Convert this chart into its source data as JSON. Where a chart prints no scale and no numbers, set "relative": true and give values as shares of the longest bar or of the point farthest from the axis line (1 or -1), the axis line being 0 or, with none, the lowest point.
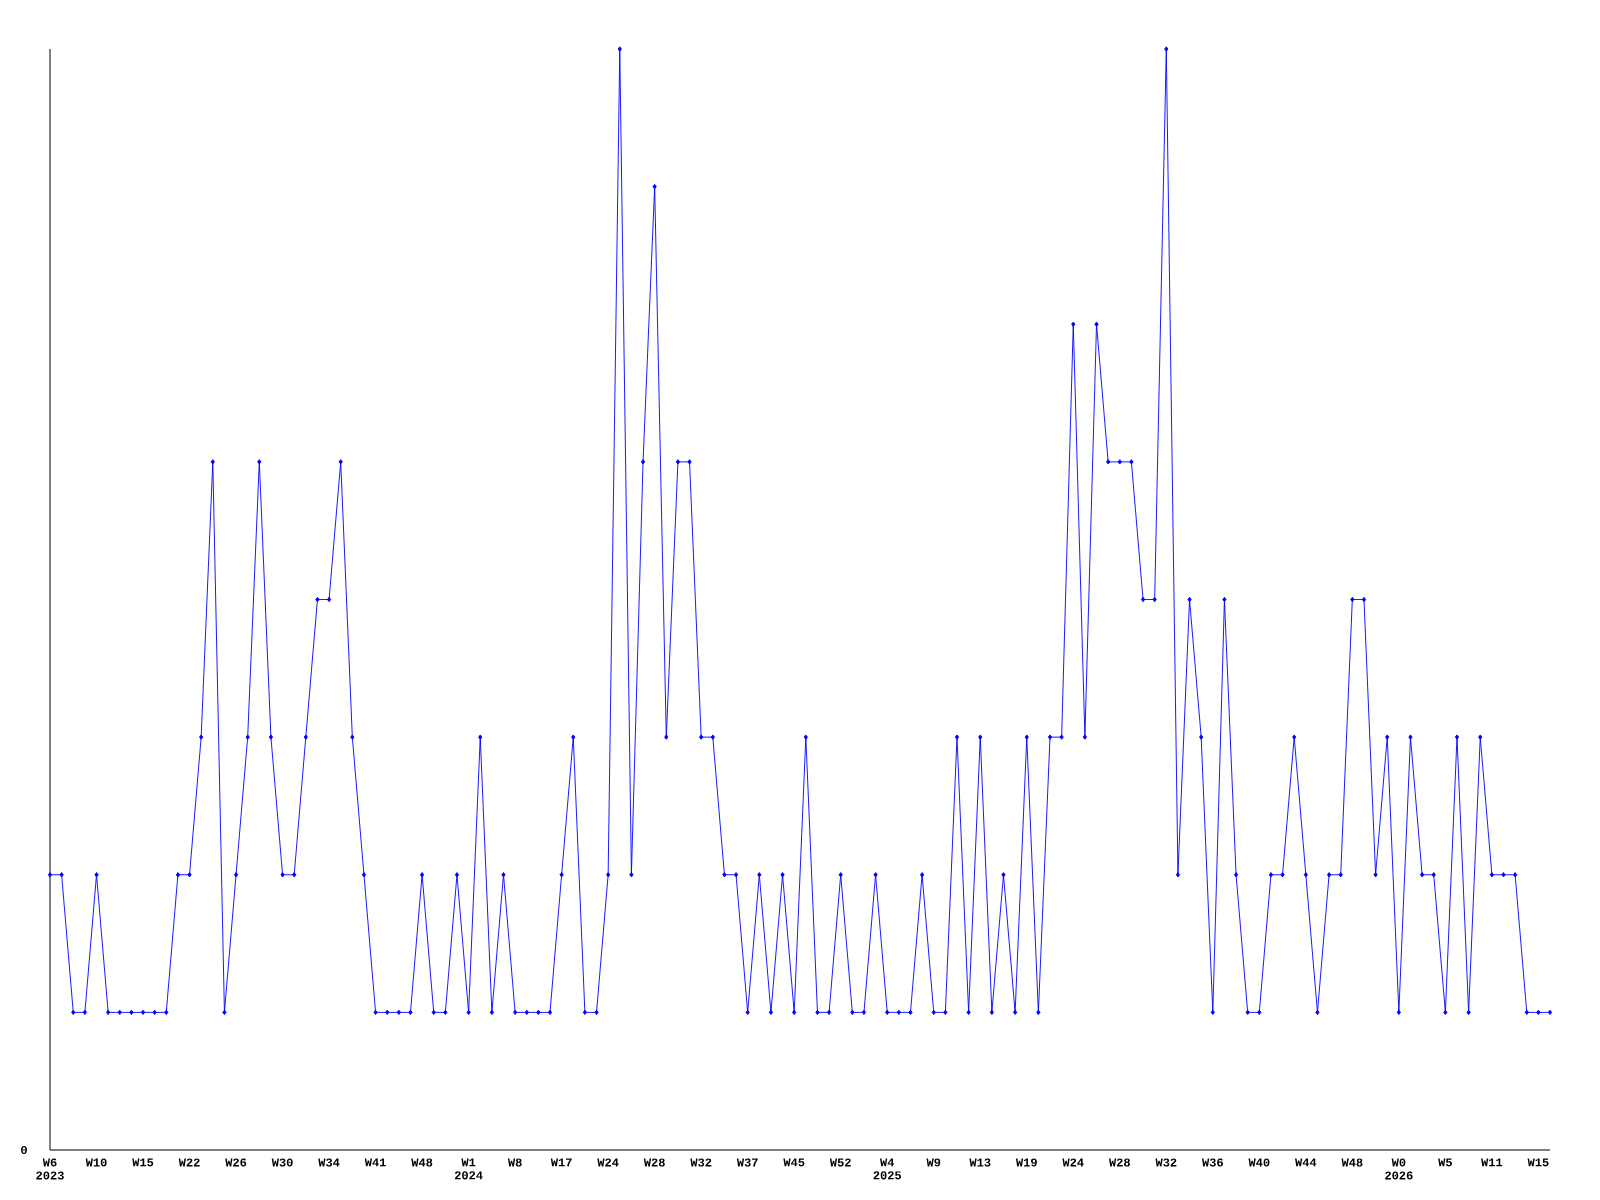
{
  "chart_data": {
    "type": "line",
    "relative": true,
    "color": "#0000ff",
    "marker": "diamond",
    "line_style": "solid",
    "grid": false,
    "categories": [
      "W6 2023",
      null,
      null,
      null,
      "W10",
      null,
      null,
      null,
      "W15",
      null,
      null,
      null,
      "W22",
      null,
      null,
      null,
      "W26",
      null,
      null,
      null,
      "W30",
      null,
      null,
      null,
      "W34",
      null,
      null,
      null,
      "W41",
      null,
      null,
      null,
      "W48",
      null,
      null,
      null,
      "W1 2024",
      null,
      null,
      null,
      "W8",
      null,
      null,
      null,
      "W17",
      null,
      null,
      null,
      "W24",
      null,
      null,
      null,
      "W28",
      null,
      null,
      null,
      "W32",
      null,
      null,
      null,
      "W37",
      null,
      null,
      null,
      "W45",
      null,
      null,
      null,
      "W52",
      null,
      null,
      null,
      "W4 2025",
      null,
      null,
      null,
      "W9",
      null,
      null,
      null,
      "W13",
      null,
      null,
      null,
      "W19",
      null,
      null,
      null,
      "W24",
      null,
      null,
      null,
      "W28",
      null,
      null,
      null,
      "W32",
      null,
      null,
      null,
      "W36",
      null,
      null,
      null,
      "W40",
      null,
      null,
      null,
      "W44",
      null,
      null,
      null,
      "W48",
      null,
      null,
      null,
      "W0 2026",
      null,
      null,
      null,
      "W5",
      null,
      null,
      null,
      "W11",
      null,
      null,
      null,
      "W15",
      null
    ],
    "values": [
      0.25,
      0.25,
      0.125,
      0.125,
      0.25,
      0.125,
      0.125,
      0.125,
      0.125,
      0.125,
      0.125,
      0.25,
      0.25,
      0.375,
      0.625,
      0.125,
      0.25,
      0.375,
      0.625,
      0.375,
      0.25,
      0.25,
      0.375,
      0.5,
      0.5,
      0.625,
      0.375,
      0.25,
      0.125,
      0.125,
      0.125,
      0.125,
      0.25,
      0.125,
      0.125,
      0.25,
      0.125,
      0.375,
      0.125,
      0.25,
      0.125,
      0.125,
      0.125,
      0.125,
      0.25,
      0.375,
      0.125,
      0.125,
      0.25,
      1,
      0.25,
      0.625,
      0.875,
      0.375,
      0.625,
      0.625,
      0.375,
      0.375,
      0.25,
      0.25,
      0.125,
      0.25,
      0.125,
      0.25,
      0.125,
      0.375,
      0.125,
      0.125,
      0.25,
      0.125,
      0.125,
      0.25,
      0.125,
      0.125,
      0.125,
      0.25,
      0.125,
      0.125,
      0.375,
      0.125,
      0.375,
      0.125,
      0.25,
      0.125,
      0.375,
      0.125,
      0.375,
      0.375,
      0.75,
      0.375,
      0.75,
      0.625,
      0.625,
      0.625,
      0.5,
      0.5,
      1,
      0.25,
      0.5,
      0.375,
      0.125,
      0.5,
      0.25,
      0.125,
      0.125,
      0.25,
      0.25,
      0.375,
      0.25,
      0.125,
      0.25,
      0.25,
      0.5,
      0.5,
      0.25,
      0.375,
      0.125,
      0.375,
      0.25,
      0.25,
      0.125,
      0.375,
      0.125,
      0.375,
      0.25,
      0.25,
      0.25,
      0.125,
      0.125,
      0.125
    ],
    "annotations": [
      "0"
    ]
  }
}
